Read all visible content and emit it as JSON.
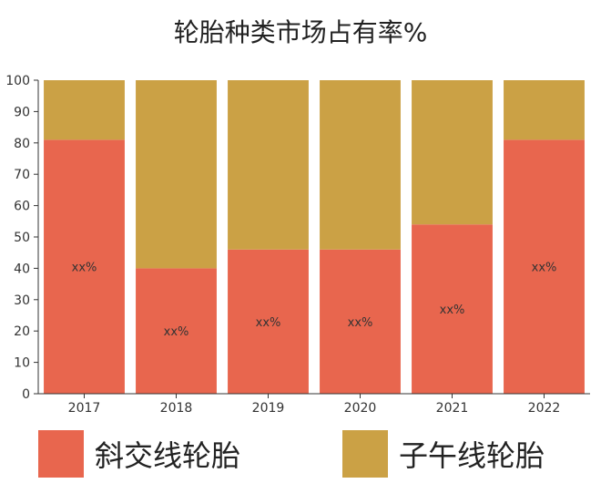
{
  "chart_data": {
    "type": "bar",
    "stacked": true,
    "title": "轮胎种类市场占有率%",
    "categories": [
      "2017",
      "2018",
      "2019",
      "2020",
      "2021",
      "2022"
    ],
    "series": [
      {
        "name": "斜交线轮胎",
        "color": "#E8664E",
        "values": [
          81,
          40,
          46,
          46,
          54,
          81
        ],
        "labels": [
          "xx%",
          "xx%",
          "xx%",
          "xx%",
          "xx%",
          "xx%"
        ]
      },
      {
        "name": "子午线轮胎",
        "color": "#CBA145",
        "values": [
          19,
          60,
          54,
          54,
          46,
          19
        ]
      }
    ],
    "ylim": [
      0,
      100
    ],
    "yticks": [
      "0",
      "10",
      "20",
      "30",
      "40",
      "50",
      "60",
      "70",
      "80",
      "90",
      "100"
    ],
    "xlabel": "",
    "ylabel": "",
    "grid": false,
    "legend": "bottom"
  }
}
